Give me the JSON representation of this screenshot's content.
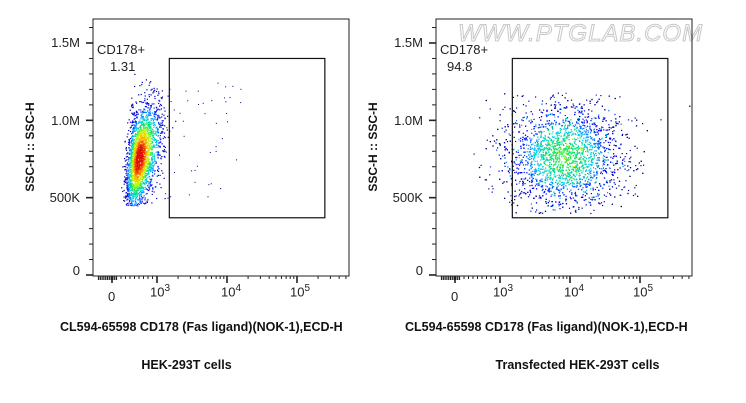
{
  "watermark": "WWW.PTGLAB.COM",
  "chart_data": [
    {
      "type": "scatter",
      "title": "HEK-293T cells",
      "xlabel": "CL594-65598 CD178 (Fas ligand)(NOK-1),ECD-H",
      "ylabel": "SSC-H :: SSC-H",
      "x_scale": "biexponential",
      "x_ticks": [
        "0",
        "10^3",
        "10^4",
        "10^5"
      ],
      "y_ticks": [
        "0",
        "500K",
        "1.0M",
        "1.5M"
      ],
      "ylim": [
        0,
        1600000
      ],
      "gate": {
        "name": "CD178+",
        "percent": "1.31",
        "x_range": [
          1500,
          250000
        ],
        "y_range": [
          370000,
          1400000
        ]
      },
      "population": {
        "x_center": 600,
        "x_spread_decades": 0.12,
        "y_center": 760000,
        "y_sd": 170000,
        "y_min": 450000,
        "y_max": 1320000
      },
      "colors": [
        "#00007f",
        "#0000ff",
        "#00c8ff",
        "#00e070",
        "#c8ff00",
        "#ffb000",
        "#e01000"
      ]
    },
    {
      "type": "scatter",
      "title": "Transfected HEK-293T cells",
      "xlabel": "CL594-65598 CD178 (Fas ligand)(NOK-1),ECD-H",
      "ylabel": "SSC-H :: SSC-H",
      "x_scale": "biexponential",
      "x_ticks": [
        "0",
        "10^3",
        "10^4",
        "10^5"
      ],
      "y_ticks": [
        "0",
        "500K",
        "1.0M",
        "1.5M"
      ],
      "ylim": [
        0,
        1600000
      ],
      "gate": {
        "name": "CD178+",
        "percent": "94.8",
        "x_range": [
          1500,
          250000
        ],
        "y_range": [
          370000,
          1400000
        ]
      },
      "population": {
        "x_center": 8000,
        "x_spread_decades": 0.42,
        "y_center": 770000,
        "y_sd": 170000,
        "y_min": 390000,
        "y_max": 1180000
      },
      "colors": [
        "#00007f",
        "#0000ff",
        "#00c8ff",
        "#00e070",
        "#c8ff00",
        "#ffb000",
        "#e01000"
      ]
    }
  ]
}
